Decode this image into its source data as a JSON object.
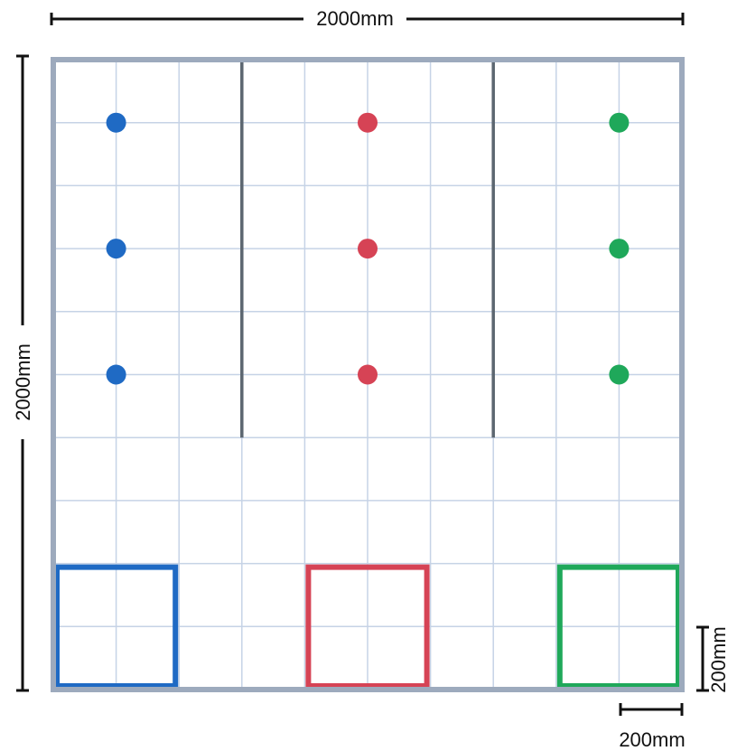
{
  "dimensions": {
    "top_width_label": "2000mm",
    "left_height_label": "2000mm",
    "cell_width_label": "200mm",
    "cell_height_label": "200mm"
  },
  "field": {
    "grid_cols": 10,
    "grid_rows": 10,
    "border_color": "#9daabd",
    "grid_color": "#c6d3e6",
    "wall_color": "#5c6670",
    "walls": [
      {
        "col": 3,
        "row_start": 0,
        "row_end": 6
      },
      {
        "col": 7,
        "row_start": 0,
        "row_end": 6
      }
    ],
    "dots": [
      {
        "color_name": "blue",
        "color": "#1f6ac4",
        "col": 1,
        "row": 1
      },
      {
        "color_name": "blue",
        "color": "#1f6ac4",
        "col": 1,
        "row": 3
      },
      {
        "color_name": "blue",
        "color": "#1f6ac4",
        "col": 1,
        "row": 5
      },
      {
        "color_name": "red",
        "color": "#d64355",
        "col": 5,
        "row": 1
      },
      {
        "color_name": "red",
        "color": "#d64355",
        "col": 5,
        "row": 3
      },
      {
        "color_name": "red",
        "color": "#d64355",
        "col": 5,
        "row": 5
      },
      {
        "color_name": "green",
        "color": "#1fa85a",
        "col": 9,
        "row": 1
      },
      {
        "color_name": "green",
        "color": "#1fa85a",
        "col": 9,
        "row": 3
      },
      {
        "color_name": "green",
        "color": "#1fa85a",
        "col": 9,
        "row": 5
      }
    ],
    "goal_zones": [
      {
        "color_name": "blue",
        "color": "#1f6ac4",
        "col_start": 0,
        "col_end": 2,
        "row_start": 8,
        "row_end": 10
      },
      {
        "color_name": "red",
        "color": "#d64355",
        "col_start": 4,
        "col_end": 6,
        "row_start": 8,
        "row_end": 10
      },
      {
        "color_name": "green",
        "color": "#1fa85a",
        "col_start": 8,
        "col_end": 10,
        "row_start": 8,
        "row_end": 10
      }
    ]
  }
}
